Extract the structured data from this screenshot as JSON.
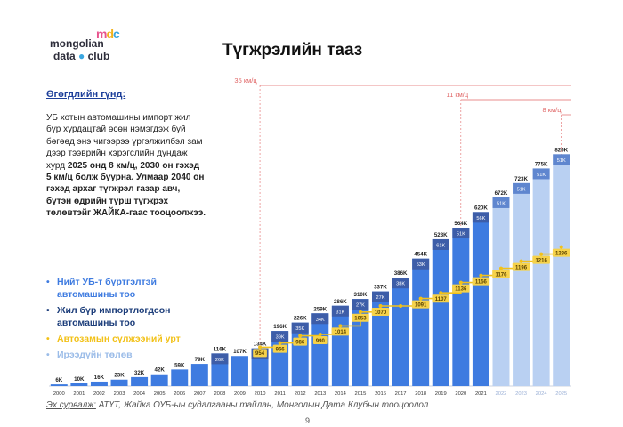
{
  "logo": {
    "line1": "mongolian",
    "line2": "data",
    "line2b": "club",
    "mark": "mdc"
  },
  "title": "Түгжрэлийн тааз",
  "intro": {
    "heading": "Өгөгдлийн гүнд:",
    "p1": "УБ хотын автомашины импорт жил бүр хурдацтай өсөн нэмэгдэж буй бөгөөд энэ чигээрээ үргэлжилбэл зам дээр тээврийн хэрэгслийн дундаж хурд ",
    "p1_bold": "2025 онд 8 км/ц, 2030 он гэхэд 5 км/ц болж буурна. Улмаар 2040 он гэхэд архаг түгжрэл газар авч, бүтэн өдрийн турш түгжрэх төлөвтэйг ЖАЙКА-гаас тооцоолжээ."
  },
  "legend": [
    {
      "label": "Нийт УБ-т бүртгэлтэй автомашины тоо",
      "color": "#3e7be0"
    },
    {
      "label": "Жил бүр импортлогдсон автомашины тоо",
      "color": "#1c3d7a"
    },
    {
      "label": "Автозамын сүлжээний урт",
      "color": "#f2c118"
    },
    {
      "label": "Ирээдүйн төлөв",
      "color": "#9bbce8"
    }
  ],
  "source": {
    "label": "Эх сурвалж:",
    "text": " АТҮТ, Жайка ОУБ-ын судалгааны тайлан, Монголын Дата Клубын тооцоолол"
  },
  "page_number": "9",
  "colors": {
    "total": "#3e7be0",
    "import": "#3d5da8",
    "future": "#b9d0f2",
    "future_import": "#5f86cf",
    "road": "#f2c118",
    "speed": "#e06666"
  },
  "chart_data": {
    "type": "bar",
    "categories": [
      "2000",
      "2001",
      "2002",
      "2003",
      "2004",
      "2005",
      "2006",
      "2007",
      "2008",
      "2009",
      "2010",
      "2011",
      "2012",
      "2013",
      "2014",
      "2015",
      "2016",
      "2017",
      "2018",
      "2019",
      "2020",
      "2021",
      "2022",
      "2023",
      "2024",
      "2025"
    ],
    "series": [
      {
        "name": "Нийт УБ-т бүртгэлтэй автомашины тоо",
        "values": [
          6,
          10,
          16,
          23,
          32,
          42,
          59,
          79,
          116,
          107,
          134,
          196,
          226,
          259,
          286,
          310,
          337,
          386,
          454,
          523,
          564,
          620,
          672,
          723,
          775,
          826
        ],
        "labels": [
          "6K",
          "10K",
          "16K",
          "23K",
          "32K",
          "42K",
          "59K",
          "79K",
          "116K",
          "107K",
          "134K",
          "196K",
          "226K",
          "259K",
          "286K",
          "310K",
          "337K",
          "386K",
          "454K",
          "523K",
          "564K",
          "620K",
          "672K",
          "723K",
          "775K",
          "826K"
        ]
      },
      {
        "name": "Жил бүр импортлогдсон автомашины тоо",
        "values": [
          null,
          null,
          null,
          null,
          null,
          null,
          null,
          null,
          26,
          null,
          29,
          39,
          35,
          34,
          31,
          27,
          27,
          38,
          53,
          61,
          51,
          56,
          51,
          51,
          51,
          51
        ],
        "labels": [
          "",
          "",
          "",
          "",
          "",
          "",
          "",
          "",
          "26K",
          "",
          "29K",
          "39K",
          "35K",
          "34K",
          "31K",
          "27K",
          "27K",
          "38K",
          "53K",
          "61K",
          "51K",
          "56K",
          "51K",
          "51K",
          "51K",
          "51K"
        ]
      },
      {
        "name": "Автозамын сүлжээний урт",
        "values": [
          null,
          null,
          null,
          null,
          null,
          null,
          null,
          null,
          null,
          null,
          954,
          966,
          986,
          990,
          1014,
          1053,
          1070,
          1070,
          1091,
          1107,
          1136,
          1156,
          1176,
          1196,
          1216,
          1236
        ],
        "labels": [
          "",
          "",
          "",
          "",
          "",
          "",
          "",
          "",
          "",
          "",
          "954",
          "966",
          "986",
          "990",
          "1014",
          "1053",
          "1070",
          "",
          "1091",
          "1107",
          "1136",
          "1156",
          "1176",
          "1196",
          "1216",
          "1236"
        ]
      }
    ],
    "future_from": "2022",
    "speed_annotations": [
      {
        "label": "35 км/ц",
        "from": "2010"
      },
      {
        "label": "11 км/ц",
        "from": "2020"
      },
      {
        "label": "8 км/ц",
        "from": "2025"
      }
    ],
    "ylim": [
      0,
      900
    ]
  }
}
